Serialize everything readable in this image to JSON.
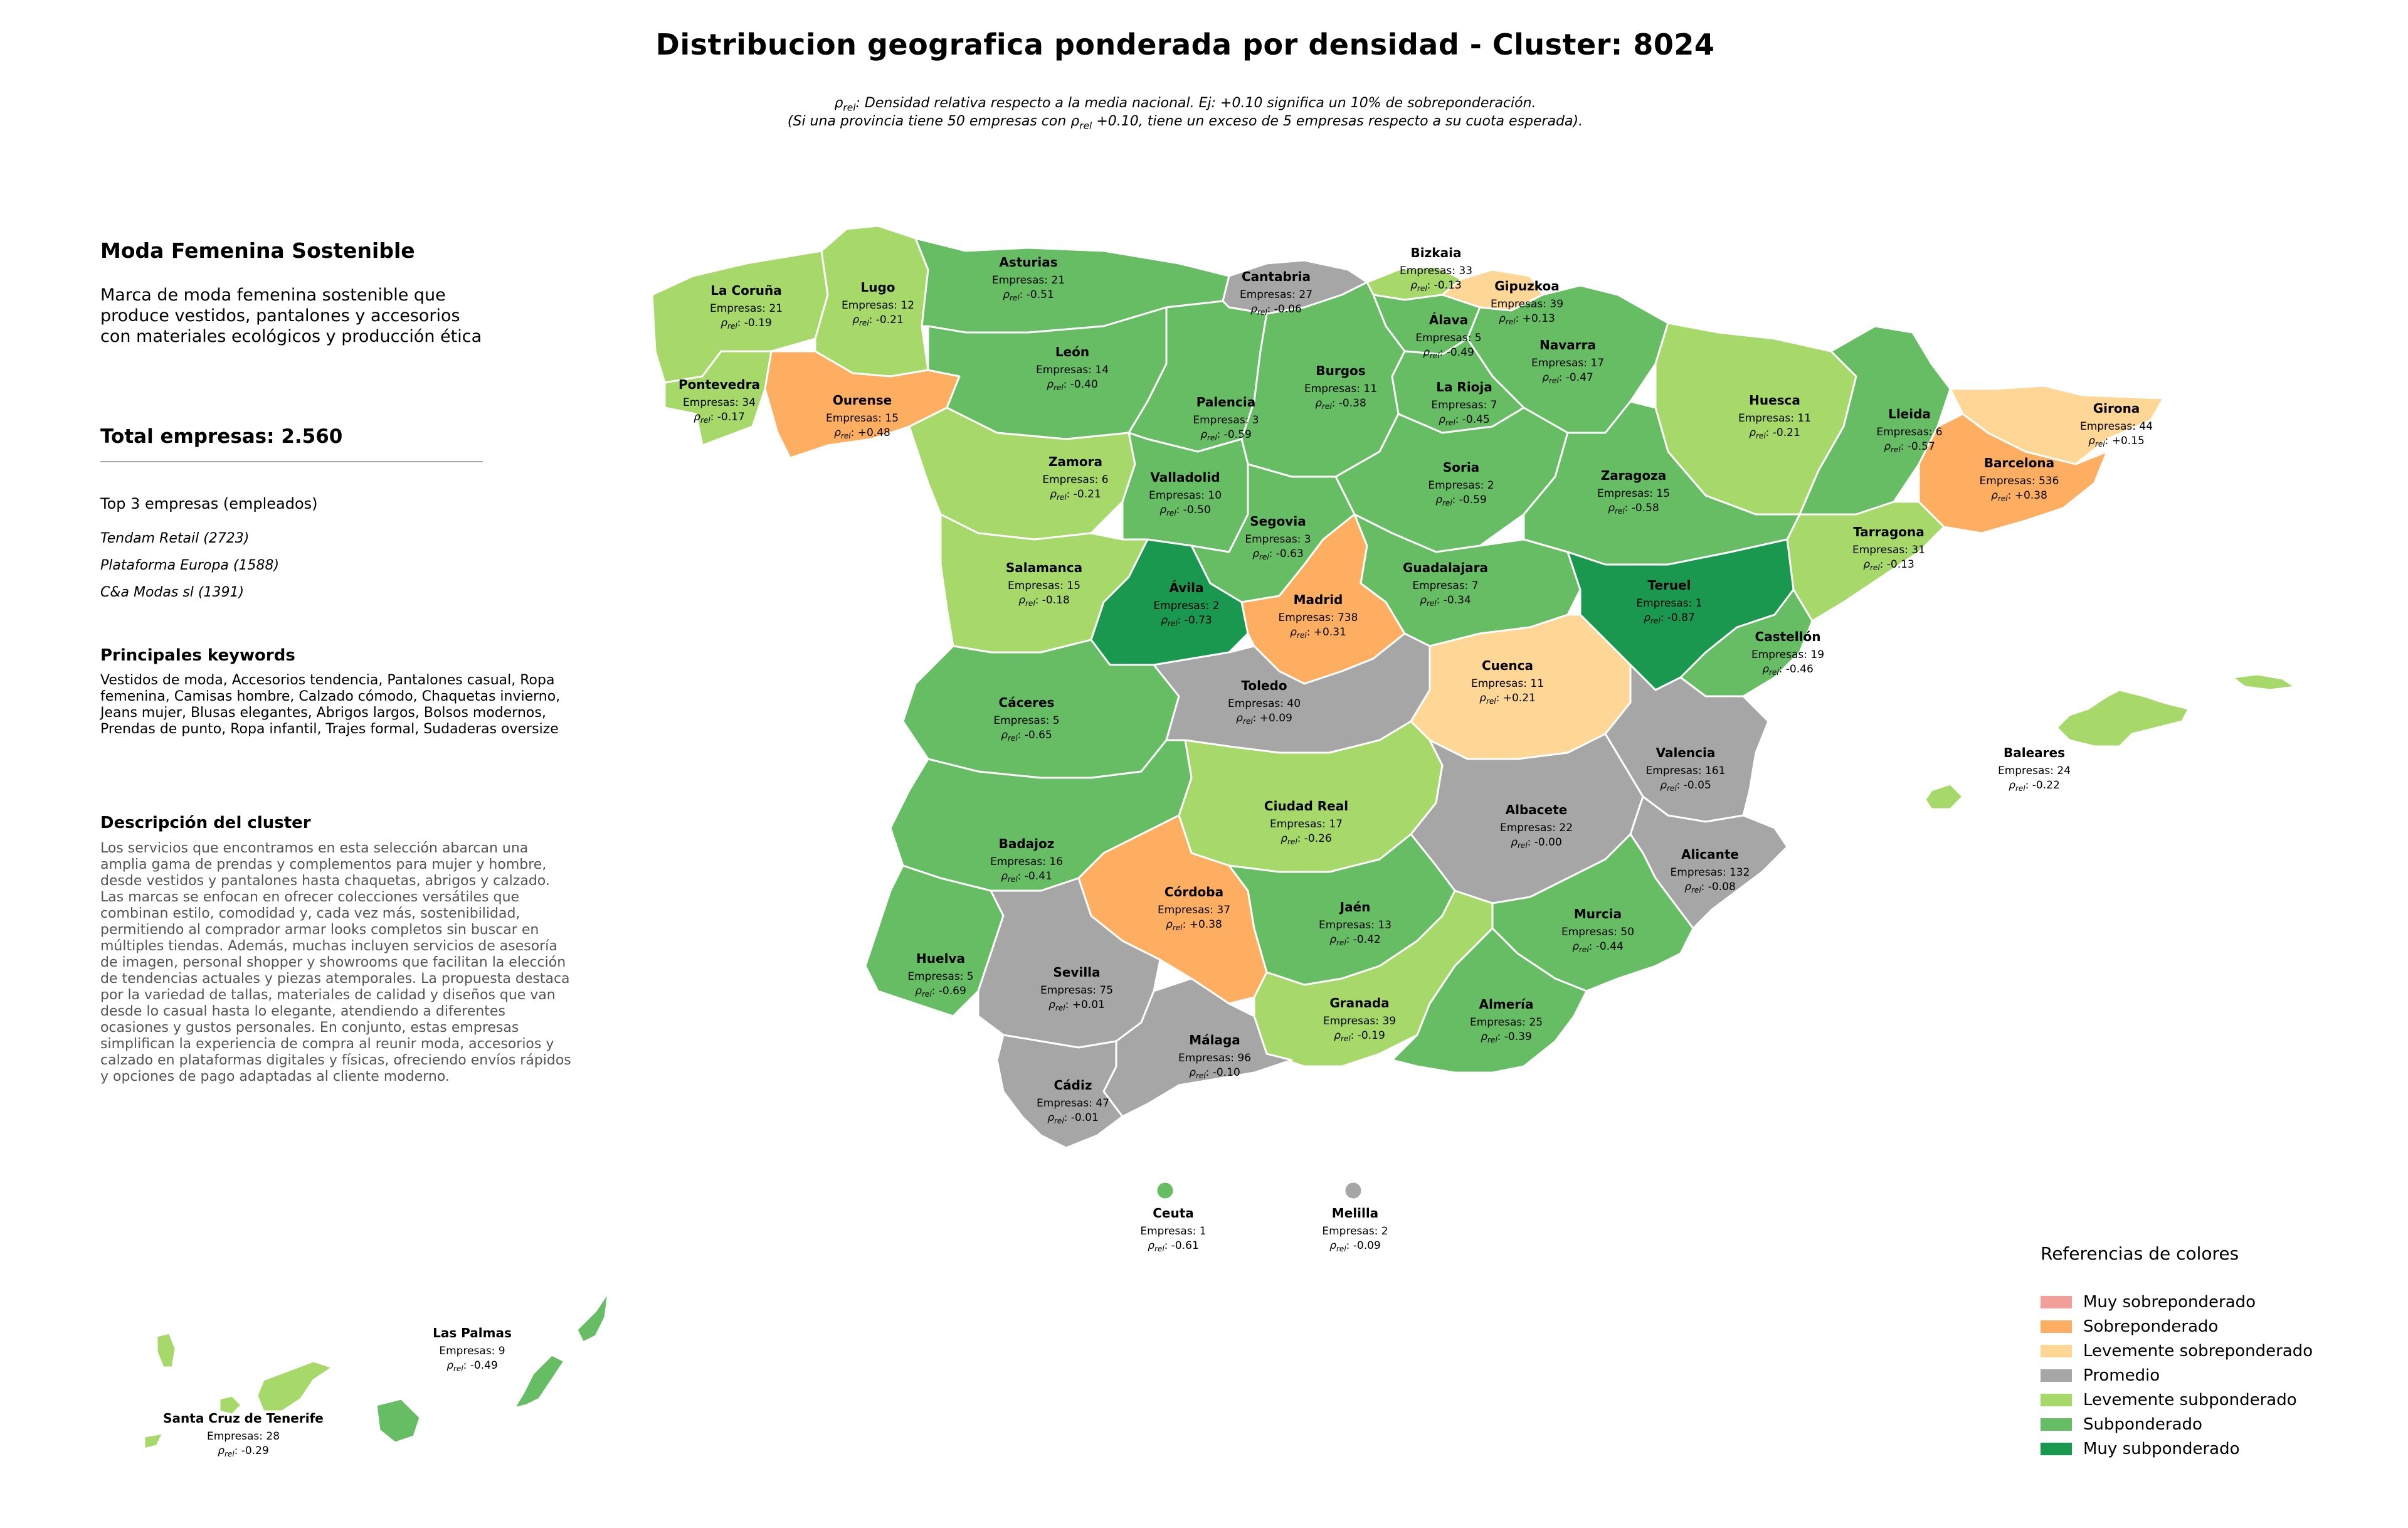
{
  "title": "Distribucion geografica ponderada por densidad - Cluster: 8024",
  "notes": {
    "rho_symbol": "ρ",
    "rho_sub": "rel",
    "line1_text": ": Densidad relativa respecto a la media nacional. Ej: +0.10 significa un 10% de sobreponderación.",
    "line2_before": "(Si una provincia tiene 50 empresas con ",
    "line2_after": " +0.10, tiene un exceso de 5 empresas respecto a su cuota esperada)."
  },
  "sidebar": {
    "name": "Moda Femenina Sostenible",
    "description": "Marca de moda femenina sostenible que produce vestidos, pantalones y accesorios con materiales ecológicos y producción ética",
    "total": "Total empresas: 2.560",
    "top3_heading": "Top 3 empresas (empleados)",
    "top3": [
      "Tendam Retail (2723)",
      "Plataforma Europa (1588)",
      "C&a Modas sl (1391)"
    ],
    "keywords_heading": "Principales keywords",
    "keywords": "Vestidos de moda, Accesorios tendencia, Pantalones casual, Ropa femenina, Camisas hombre, Calzado cómodo, Chaquetas invierno, Jeans mujer, Blusas elegantes, Abrigos largos, Bolsos modernos, Prendas de punto, Ropa infantil, Trajes formal, Sudaderas oversize",
    "cluster_heading": "Descripción del cluster",
    "cluster_description": "Los servicios que encontramos en esta selección abarcan una amplia gama de prendas y complementos para mujer y hombre, desde vestidos y pantalones hasta chaquetas, abrigos y calzado. Las marcas se enfocan en ofrecer colecciones versátiles que combinan estilo, comodidad y, cada vez más, sostenibilidad, permitiendo al comprador armar looks completos sin buscar en múltiples tiendas. Además, muchas incluyen servicios de asesoría de imagen, personal shopper y showrooms que facilitan la elección de tendencias actuales y piezas atemporales. La propuesta destaca por la variedad de tallas, materiales de calidad y diseños que van desde lo casual hasta lo elegante, atendiendo a diferentes ocasiones y gustos personales. En conjunto, estas empresas simplifican la experiencia de compra al reunir moda, accesorios y calzado en plataformas digitales y físicas, ofreciendo envíos rápidos y opciones de pago adaptadas al cliente moderno."
  },
  "legend": {
    "title": "Referencias de colores",
    "items": [
      {
        "key": "muy_sobre",
        "label": "Muy sobreponderado",
        "color": "#f4a09a"
      },
      {
        "key": "sobre",
        "label": "Sobreponderado",
        "color": "#fdae61"
      },
      {
        "key": "lev_sobre",
        "label": "Levemente sobreponderado",
        "color": "#fed695"
      },
      {
        "key": "promedio",
        "label": "Promedio",
        "color": "#a6a6a6"
      },
      {
        "key": "lev_sub",
        "label": "Levemente subponderado",
        "color": "#a6d96a"
      },
      {
        "key": "sub",
        "label": "Subponderado",
        "color": "#66bd63"
      },
      {
        "key": "muy_sub",
        "label": "Muy subponderado",
        "color": "#1a9850"
      }
    ]
  },
  "count_prefix": "Empresas: ",
  "provinces": [
    {
      "name": "La Coruña",
      "count": 21,
      "rho": "-0.19",
      "category": "lev_sub"
    },
    {
      "name": "Lugo",
      "count": 12,
      "rho": "-0.21",
      "category": "lev_sub"
    },
    {
      "name": "Asturias",
      "count": 21,
      "rho": "-0.51",
      "category": "sub"
    },
    {
      "name": "Cantabria",
      "count": 27,
      "rho": "-0.06",
      "category": "promedio"
    },
    {
      "name": "Bizkaia",
      "count": 33,
      "rho": "-0.13",
      "category": "lev_sub"
    },
    {
      "name": "Gipuzkoa",
      "count": 39,
      "rho": "+0.13",
      "category": "lev_sobre"
    },
    {
      "name": "Álava",
      "count": 5,
      "rho": "-0.49",
      "category": "sub"
    },
    {
      "name": "Navarra",
      "count": 17,
      "rho": "-0.47",
      "category": "sub"
    },
    {
      "name": "Pontevedra",
      "count": 34,
      "rho": "-0.17",
      "category": "lev_sub"
    },
    {
      "name": "Ourense",
      "count": 15,
      "rho": "+0.48",
      "category": "sobre"
    },
    {
      "name": "León",
      "count": 14,
      "rho": "-0.40",
      "category": "sub"
    },
    {
      "name": "Palencia",
      "count": 3,
      "rho": "-0.59",
      "category": "sub"
    },
    {
      "name": "Burgos",
      "count": 11,
      "rho": "-0.38",
      "category": "sub"
    },
    {
      "name": "La Rioja",
      "count": 7,
      "rho": "-0.45",
      "category": "sub"
    },
    {
      "name": "Huesca",
      "count": 11,
      "rho": "-0.21",
      "category": "lev_sub"
    },
    {
      "name": "Lleida",
      "count": 6,
      "rho": "-0.57",
      "category": "sub"
    },
    {
      "name": "Girona",
      "count": 44,
      "rho": "+0.15",
      "category": "lev_sobre"
    },
    {
      "name": "Barcelona",
      "count": 536,
      "rho": "+0.38",
      "category": "sobre"
    },
    {
      "name": "Zamora",
      "count": 6,
      "rho": "-0.21",
      "category": "lev_sub"
    },
    {
      "name": "Valladolid",
      "count": 10,
      "rho": "-0.50",
      "category": "sub"
    },
    {
      "name": "Soria",
      "count": 2,
      "rho": "-0.59",
      "category": "sub"
    },
    {
      "name": "Zaragoza",
      "count": 15,
      "rho": "-0.58",
      "category": "sub"
    },
    {
      "name": "Tarragona",
      "count": 31,
      "rho": "-0.13",
      "category": "lev_sub"
    },
    {
      "name": "Salamanca",
      "count": 15,
      "rho": "-0.18",
      "category": "lev_sub"
    },
    {
      "name": "Segovia",
      "count": 3,
      "rho": "-0.63",
      "category": "sub"
    },
    {
      "name": "Ávila",
      "count": 2,
      "rho": "-0.73",
      "category": "muy_sub"
    },
    {
      "name": "Madrid",
      "count": 738,
      "rho": "+0.31",
      "category": "sobre"
    },
    {
      "name": "Guadalajara",
      "count": 7,
      "rho": "-0.34",
      "category": "sub"
    },
    {
      "name": "Teruel",
      "count": 1,
      "rho": "-0.87",
      "category": "muy_sub"
    },
    {
      "name": "Castellón",
      "count": 19,
      "rho": "-0.46",
      "category": "sub"
    },
    {
      "name": "Cáceres",
      "count": 5,
      "rho": "-0.65",
      "category": "sub"
    },
    {
      "name": "Toledo",
      "count": 40,
      "rho": "+0.09",
      "category": "promedio"
    },
    {
      "name": "Cuenca",
      "count": 11,
      "rho": "+0.21",
      "category": "lev_sobre"
    },
    {
      "name": "Valencia",
      "count": 161,
      "rho": "-0.05",
      "category": "promedio"
    },
    {
      "name": "Baleares",
      "count": 24,
      "rho": "-0.22",
      "category": "lev_sub"
    },
    {
      "name": "Ciudad Real",
      "count": 17,
      "rho": "-0.26",
      "category": "lev_sub"
    },
    {
      "name": "Albacete",
      "count": 22,
      "rho": "-0.00",
      "category": "promedio"
    },
    {
      "name": "Badajoz",
      "count": 16,
      "rho": "-0.41",
      "category": "sub"
    },
    {
      "name": "Alicante",
      "count": 132,
      "rho": "-0.08",
      "category": "promedio"
    },
    {
      "name": "Córdoba",
      "count": 37,
      "rho": "+0.38",
      "category": "sobre"
    },
    {
      "name": "Jaén",
      "count": 13,
      "rho": "-0.42",
      "category": "sub"
    },
    {
      "name": "Murcia",
      "count": 50,
      "rho": "-0.44",
      "category": "sub"
    },
    {
      "name": "Huelva",
      "count": 5,
      "rho": "-0.69",
      "category": "sub"
    },
    {
      "name": "Sevilla",
      "count": 75,
      "rho": "+0.01",
      "category": "promedio"
    },
    {
      "name": "Granada",
      "count": 39,
      "rho": "-0.19",
      "category": "lev_sub"
    },
    {
      "name": "Almería",
      "count": 25,
      "rho": "-0.39",
      "category": "sub"
    },
    {
      "name": "Málaga",
      "count": 96,
      "rho": "-0.10",
      "category": "promedio"
    },
    {
      "name": "Cádiz",
      "count": 47,
      "rho": "-0.01",
      "category": "promedio"
    },
    {
      "name": "Ceuta",
      "count": 1,
      "rho": "-0.61",
      "category": "sub"
    },
    {
      "name": "Melilla",
      "count": 2,
      "rho": "-0.09",
      "category": "promedio"
    },
    {
      "name": "Las Palmas",
      "count": 9,
      "rho": "-0.49",
      "category": "sub"
    },
    {
      "name": "Santa Cruz de Tenerife",
      "count": 28,
      "rho": "-0.29",
      "category": "lev_sub"
    }
  ]
}
